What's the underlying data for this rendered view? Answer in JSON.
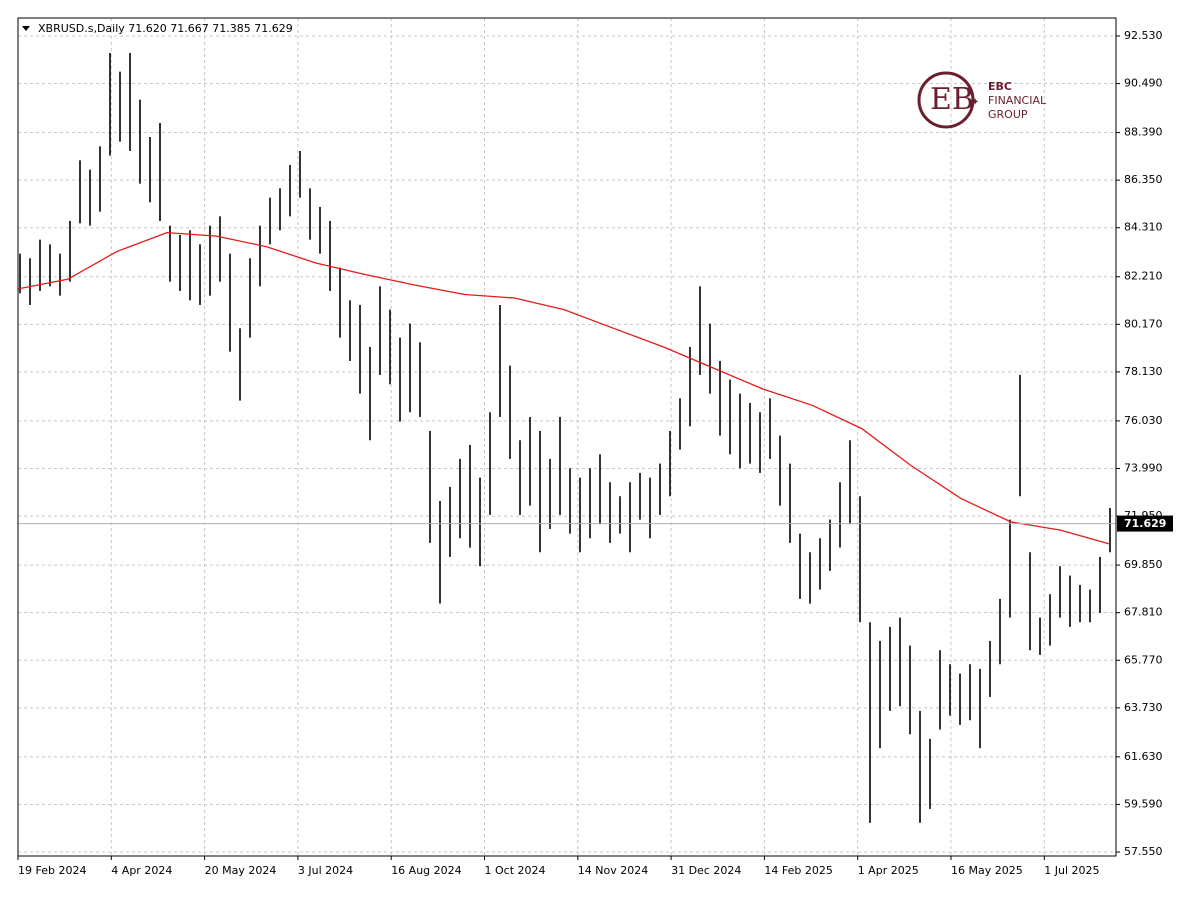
{
  "chart_data": {
    "type": "ohlc",
    "title": "XBRUSD.s,Daily  71.620 71.667 71.385 71.629",
    "bar_color": "#000000",
    "high": [
      83.2,
      83.0,
      83.8,
      83.6,
      83.2,
      84.6,
      87.2,
      86.8,
      87.8,
      91.8,
      91.0,
      91.8,
      89.8,
      88.2,
      88.8,
      84.4,
      84.0,
      84.2,
      83.6,
      84.4,
      84.8,
      83.2,
      80.0,
      83.0,
      84.4,
      85.6,
      86.0,
      87.0,
      87.6,
      86.0,
      85.2,
      84.6,
      82.6,
      81.2,
      81.0,
      79.2,
      81.8,
      80.8,
      79.6,
      80.2,
      79.4,
      75.6,
      72.6,
      73.2,
      74.4,
      75.0,
      73.6,
      76.4,
      81.0,
      78.4,
      75.2,
      76.2,
      75.6,
      74.4,
      76.2,
      74.0,
      73.6,
      74.0,
      74.6,
      73.4,
      72.8,
      73.4,
      73.8,
      73.6,
      74.2,
      75.6,
      77.0,
      79.2,
      81.8,
      80.2,
      78.6,
      77.8,
      77.2,
      76.8,
      76.4,
      77.0,
      75.4,
      74.2,
      71.2,
      70.4,
      71.0,
      71.8,
      73.4,
      75.2,
      72.8,
      67.4,
      66.6,
      67.2,
      67.6,
      66.4,
      63.6,
      62.4,
      66.2,
      65.6,
      65.2,
      65.6,
      65.4,
      66.6,
      68.4,
      71.8,
      78.0,
      70.4,
      67.6,
      68.6,
      69.8,
      69.4,
      69.0,
      68.8,
      70.2,
      72.3
    ],
    "low": [
      81.5,
      81.0,
      81.6,
      81.8,
      81.4,
      82.0,
      84.5,
      84.4,
      85.0,
      87.4,
      88.0,
      87.6,
      86.2,
      85.4,
      84.6,
      82.0,
      81.6,
      81.2,
      81.0,
      81.4,
      82.0,
      79.0,
      76.9,
      79.6,
      81.8,
      83.6,
      84.2,
      84.8,
      85.6,
      83.8,
      83.2,
      81.6,
      79.6,
      78.6,
      77.2,
      75.2,
      78.0,
      77.6,
      76.0,
      76.4,
      76.2,
      70.8,
      68.2,
      70.2,
      71.0,
      70.6,
      69.8,
      72.0,
      76.2,
      74.4,
      72.0,
      72.4,
      70.4,
      71.4,
      72.0,
      71.2,
      70.4,
      71.0,
      71.6,
      70.8,
      71.2,
      70.4,
      71.8,
      71.0,
      72.0,
      72.8,
      74.8,
      75.8,
      78.0,
      77.2,
      75.4,
      74.6,
      74.0,
      74.2,
      73.8,
      74.4,
      72.4,
      70.8,
      68.4,
      68.2,
      68.8,
      69.6,
      70.6,
      71.6,
      67.4,
      58.8,
      62.0,
      63.6,
      63.8,
      62.6,
      58.8,
      59.4,
      62.8,
      63.4,
      63.0,
      63.2,
      62.0,
      64.2,
      65.6,
      67.6,
      72.8,
      66.2,
      66.0,
      66.4,
      67.6,
      67.2,
      67.4,
      67.4,
      67.8,
      70.4
    ],
    "ma": {
      "color": "#e41a1a",
      "values": [
        81.69,
        82.1,
        83.3,
        84.1,
        83.95,
        83.5,
        82.8,
        82.3,
        81.85,
        81.45,
        81.3,
        80.8,
        80.0,
        79.2,
        78.3,
        77.4,
        76.7,
        75.7,
        74.1,
        72.7,
        71.7,
        71.35,
        70.75
      ]
    },
    "last_price": {
      "value": 71.629,
      "label": "71.629"
    },
    "ylim": [
      57.38,
      93.3
    ],
    "yticks": [
      {
        "value": 92.53,
        "label": "92.530"
      },
      {
        "value": 90.49,
        "label": "90.490"
      },
      {
        "value": 88.39,
        "label": "88.390"
      },
      {
        "value": 86.35,
        "label": "86.350"
      },
      {
        "value": 84.31,
        "label": "84.310"
      },
      {
        "value": 82.21,
        "label": "82.210"
      },
      {
        "value": 80.17,
        "label": "80.170"
      },
      {
        "value": 78.13,
        "label": "78.130"
      },
      {
        "value": 76.03,
        "label": "76.030"
      },
      {
        "value": 73.99,
        "label": "73.990"
      },
      {
        "value": 71.95,
        "label": "71.950"
      },
      {
        "value": 69.85,
        "label": "69.850"
      },
      {
        "value": 67.81,
        "label": "67.810"
      },
      {
        "value": 65.77,
        "label": "65.770"
      },
      {
        "value": 63.73,
        "label": "63.730"
      },
      {
        "value": 61.63,
        "label": "61.630"
      },
      {
        "value": 59.59,
        "label": "59.590"
      },
      {
        "value": 57.55,
        "label": "57.550"
      }
    ],
    "xticks": [
      "19 Feb 2024",
      "4 Apr 2024",
      "20 May 2024",
      "3 Jul 2024",
      "16 Aug 2024",
      "1 Oct 2024",
      "14 Nov 2024",
      "31 Dec 2024",
      "14 Feb 2025",
      "1 Apr 2025",
      "16 May 2025",
      "1 Jul 2025"
    ],
    "grid": true
  },
  "logo": {
    "line1": "EBC",
    "line2": "FINANCIAL",
    "line3": "GROUP"
  }
}
